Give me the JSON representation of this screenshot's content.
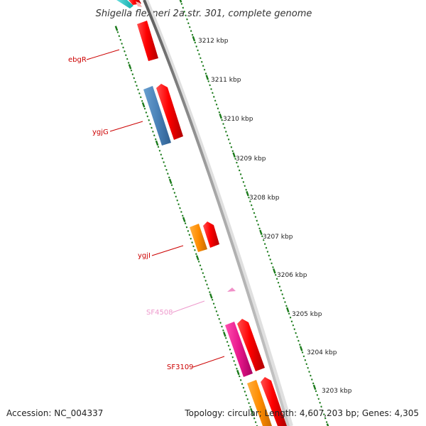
{
  "map": {
    "title": "Shigella flexneri 2a str. 301, complete genome",
    "accession": "Accession: NC_004337",
    "summary": "Topology: circular; Length: 4,607,203 bp; Genes: 4,305"
  },
  "ruler": {
    "labels": [
      "3212 kbp",
      "3211 kbp",
      "3210 kbp",
      "3209 kbp",
      "3208 kbp",
      "3207 kbp",
      "3206 kbp",
      "3205 kbp",
      "3204 kbp",
      "3203 kbp"
    ]
  },
  "genes": [
    {
      "name": "ebgR",
      "color": "#cc0000"
    },
    {
      "name": "ygjG",
      "color": "#cc0000"
    },
    {
      "name": "ygjI",
      "color": "#cc0000"
    },
    {
      "name": "SF4508",
      "color": "#ee99cc"
    },
    {
      "name": "SF3109",
      "color": "#cc0000"
    }
  ],
  "colors": {
    "backbone": "#888888",
    "ruler_ticks": "#1a7a1a",
    "feature_red": "#ff0000",
    "feature_blue": "#4a82b8",
    "feature_orange": "#ff8c00",
    "feature_magenta": "#e8188c",
    "feature_pink": "#ee88cc",
    "feature_cyan": "#22cccc"
  }
}
